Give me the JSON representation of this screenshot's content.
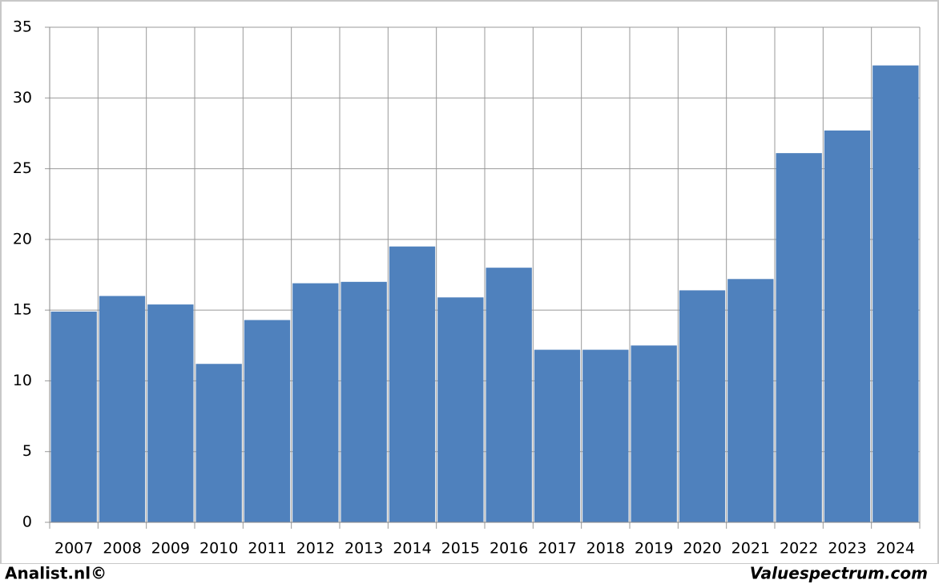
{
  "chart_data": {
    "type": "bar",
    "categories": [
      "2007",
      "2008",
      "2009",
      "2010",
      "2011",
      "2012",
      "2013",
      "2014",
      "2015",
      "2016",
      "2017",
      "2018",
      "2019",
      "2020",
      "2021",
      "2022",
      "2023",
      "2024"
    ],
    "values": [
      14.9,
      16.0,
      15.4,
      11.2,
      14.3,
      16.9,
      17.0,
      19.5,
      15.9,
      18.0,
      12.2,
      12.2,
      12.5,
      16.4,
      17.2,
      26.1,
      27.7,
      32.3
    ],
    "color": "#4f81bd",
    "ylim": [
      0,
      35
    ],
    "yticks": [
      0,
      5,
      10,
      15,
      20,
      25,
      30,
      35
    ],
    "grid": true
  },
  "footer": {
    "left": "Analist.nl©",
    "right": "Valuespectrum.com"
  }
}
